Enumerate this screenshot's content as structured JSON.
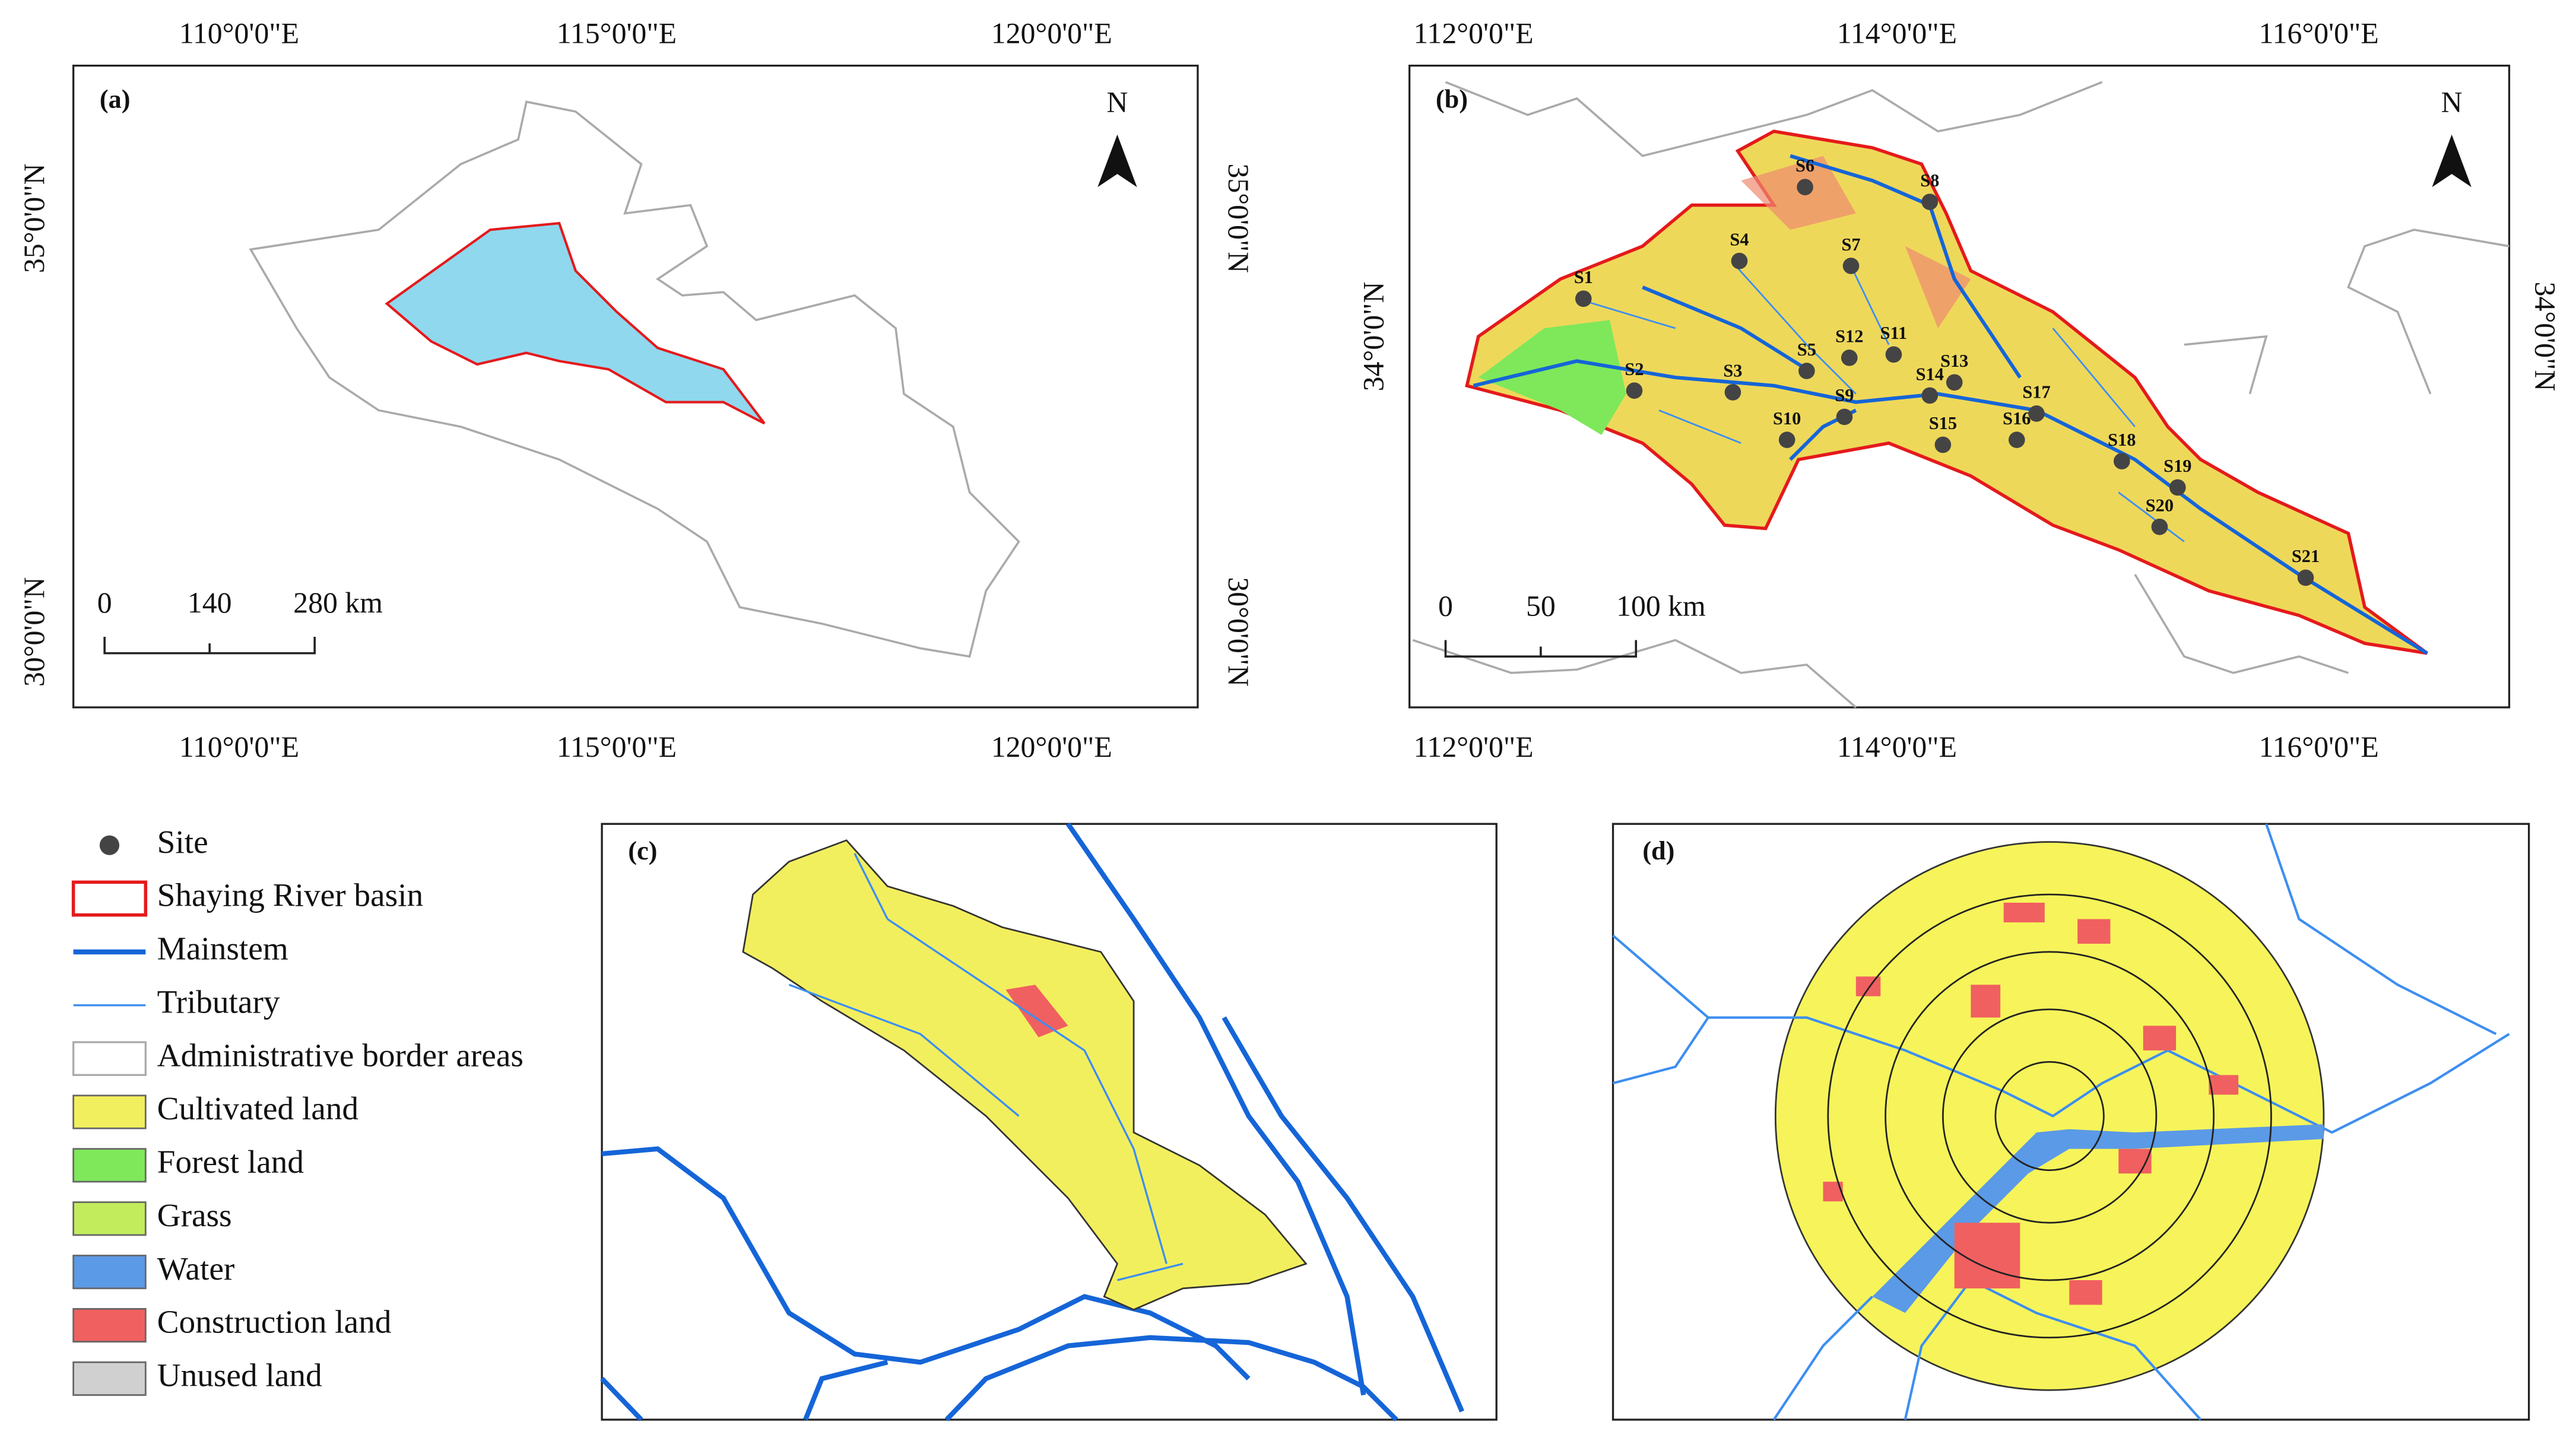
{
  "lon_labels_a": [
    "110°0'0\"E",
    "115°0'0\"E",
    "120°0'0\"E"
  ],
  "lat_labels_a": [
    "35°0'0\"N",
    "30°0'0\"N"
  ],
  "lon_labels_b": [
    "112°0'0\"E",
    "114°0'0\"E",
    "116°0'0\"E"
  ],
  "lat_labels_b": [
    "34°0'0\"N"
  ],
  "panels": [
    {
      "label": "(a)",
      "north": "N",
      "scale": [
        "0",
        "140",
        "280 km"
      ]
    },
    {
      "label": "(b)",
      "north": "N",
      "scale": [
        "0",
        "50",
        "100 km"
      ],
      "sites": [
        "S1",
        "S2",
        "S3",
        "S4",
        "S5",
        "S6",
        "S7",
        "S8",
        "S9",
        "S10",
        "S11",
        "S12",
        "S13",
        "S14",
        "S15",
        "S16",
        "S17",
        "S18",
        "S19",
        "S20",
        "S21"
      ]
    },
    {
      "label": "(c)"
    },
    {
      "label": "(d)"
    }
  ],
  "legend": [
    {
      "label": "Site",
      "color": "#444444"
    },
    {
      "label": "Shaying River basin",
      "color": "#e41a1c"
    },
    {
      "label": "Mainstem",
      "color": "#1565d8"
    },
    {
      "label": "Tributary",
      "color": "#3d8ef0"
    },
    {
      "label": "Administrative border areas",
      "color": "#aaaaaa"
    },
    {
      "label": "Cultivated land",
      "color": "#f2ef5e"
    },
    {
      "label": "Forest land",
      "color": "#7ee85a"
    },
    {
      "label": "Grass",
      "color": "#c2ec5c"
    },
    {
      "label": "Water",
      "color": "#5b9ae6"
    },
    {
      "label": "Construction land",
      "color": "#f06060"
    },
    {
      "label": "Unused land",
      "color": "#d0d0d0"
    }
  ]
}
